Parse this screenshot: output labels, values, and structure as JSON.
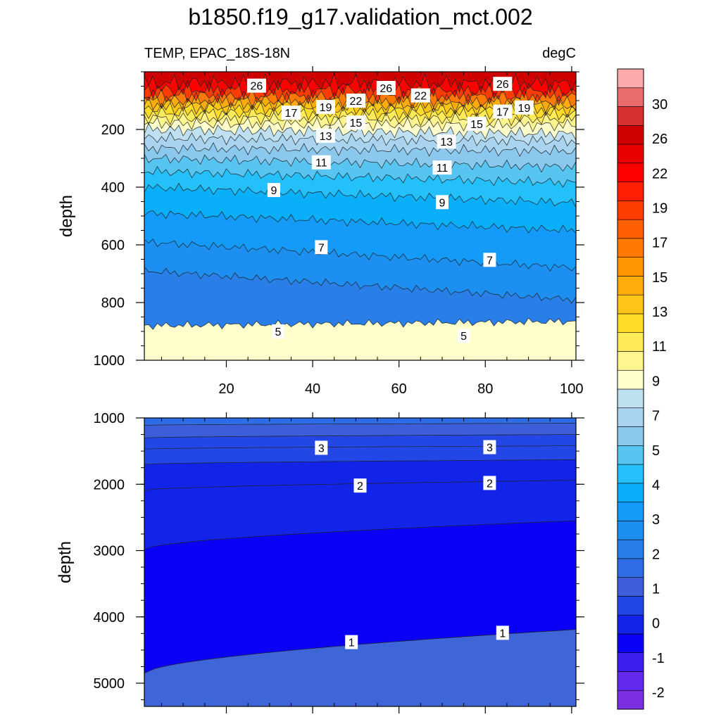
{
  "figure": {
    "title": "b1850.f19_g17.validation_mct.002"
  },
  "chart_data": [
    {
      "type": "contour",
      "panel": "upper",
      "left_label": "TEMP, EPAC_18S-18N",
      "right_label": "degC",
      "ylabel": "depth",
      "xlabel": "",
      "xlim": [
        1,
        101
      ],
      "ylim": [
        0,
        1000
      ],
      "y_reversed": true,
      "x_ticks": [
        20,
        40,
        60,
        80,
        100
      ],
      "y_ticks": [
        200,
        400,
        600,
        800,
        1000
      ],
      "contours": [
        {
          "level": 5,
          "depth_at_x1": 880,
          "depth_at_x101": 865
        },
        {
          "level": 6,
          "depth_at_x1": 690,
          "depth_at_x101": 790
        },
        {
          "level": 7,
          "depth_at_x1": 590,
          "depth_at_x101": 680
        },
        {
          "level": 8,
          "depth_at_x1": 490,
          "depth_at_x101": 550
        },
        {
          "level": 9,
          "depth_at_x1": 400,
          "depth_at_x101": 455
        },
        {
          "level": 10,
          "depth_at_x1": 345,
          "depth_at_x101": 385
        },
        {
          "level": 11,
          "depth_at_x1": 300,
          "depth_at_x101": 330
        },
        {
          "level": 12,
          "depth_at_x1": 265,
          "depth_at_x101": 275
        },
        {
          "level": 13,
          "depth_at_x1": 230,
          "depth_at_x101": 240
        },
        {
          "level": 14,
          "depth_at_x1": 200,
          "depth_at_x101": 215
        },
        {
          "level": 15,
          "depth_at_x1": 178,
          "depth_at_x101": 185
        },
        {
          "level": 16,
          "depth_at_x1": 160,
          "depth_at_x101": 165
        },
        {
          "level": 17,
          "depth_at_x1": 142,
          "depth_at_x101": 148
        },
        {
          "level": 18,
          "depth_at_x1": 126,
          "depth_at_x101": 132
        },
        {
          "level": 19,
          "depth_at_x1": 112,
          "depth_at_x101": 118
        },
        {
          "level": 20,
          "depth_at_x1": 98,
          "depth_at_x101": 104
        },
        {
          "level": 22,
          "depth_at_x1": 82,
          "depth_at_x101": 86
        },
        {
          "level": 24,
          "depth_at_x1": 62,
          "depth_at_x101": 66
        },
        {
          "level": 26,
          "depth_at_x1": 38,
          "depth_at_x101": 40
        }
      ],
      "contour_labels": [
        {
          "text": "26",
          "x": 27,
          "depth": 48
        },
        {
          "text": "26",
          "x": 57,
          "depth": 56
        },
        {
          "text": "22",
          "x": 65,
          "depth": 82
        },
        {
          "text": "26",
          "x": 84,
          "depth": 42
        },
        {
          "text": "17",
          "x": 35,
          "depth": 142
        },
        {
          "text": "19",
          "x": 43,
          "depth": 122
        },
        {
          "text": "22",
          "x": 50,
          "depth": 100
        },
        {
          "text": "17",
          "x": 84,
          "depth": 138
        },
        {
          "text": "19",
          "x": 89,
          "depth": 124
        },
        {
          "text": "15",
          "x": 50,
          "depth": 176
        },
        {
          "text": "13",
          "x": 43,
          "depth": 222
        },
        {
          "text": "15",
          "x": 78,
          "depth": 180
        },
        {
          "text": "13",
          "x": 71,
          "depth": 242
        },
        {
          "text": "11",
          "x": 42,
          "depth": 314
        },
        {
          "text": "11",
          "x": 70,
          "depth": 332
        },
        {
          "text": "9",
          "x": 31,
          "depth": 410
        },
        {
          "text": "9",
          "x": 70,
          "depth": 452
        },
        {
          "text": "7",
          "x": 42,
          "depth": 608
        },
        {
          "text": "7",
          "x": 81,
          "depth": 652
        },
        {
          "text": "5",
          "x": 32,
          "depth": 900
        },
        {
          "text": "5",
          "x": 75,
          "depth": 915
        }
      ]
    },
    {
      "type": "contour",
      "panel": "lower",
      "ylabel": "depth",
      "xlabel": "",
      "xlim": [
        1,
        101
      ],
      "ylim": [
        1000,
        5350
      ],
      "y_reversed": true,
      "x_ticks": [
        20,
        40,
        60,
        80,
        100
      ],
      "y_ticks": [
        1000,
        2000,
        3000,
        4000,
        5000
      ],
      "contours": [
        {
          "level": 1,
          "depth_at_x1": 4850,
          "depth_at_x101": 4190
        },
        {
          "level": 1.5,
          "depth_at_x1": 2980,
          "depth_at_x101": 2550
        },
        {
          "level": 2,
          "depth_at_x1": 2090,
          "depth_at_x101": 1940
        },
        {
          "level": 2.5,
          "depth_at_x1": 1700,
          "depth_at_x101": 1630
        },
        {
          "level": 3,
          "depth_at_x1": 1470,
          "depth_at_x101": 1420
        },
        {
          "level": 3.5,
          "depth_at_x1": 1300,
          "depth_at_x101": 1250
        },
        {
          "level": 4,
          "depth_at_x1": 1110,
          "depth_at_x101": 1080
        }
      ],
      "contour_labels": [
        {
          "text": "3",
          "x": 42,
          "depth": 1450
        },
        {
          "text": "3",
          "x": 81,
          "depth": 1440
        },
        {
          "text": "2",
          "x": 51,
          "depth": 2020
        },
        {
          "text": "2",
          "x": 81,
          "depth": 1980
        },
        {
          "text": "1",
          "x": 49,
          "depth": 4380
        },
        {
          "text": "1",
          "x": 84,
          "depth": 4240
        }
      ]
    }
  ],
  "colorbar": {
    "colors": [
      "#7b2ee2",
      "#6528ef",
      "#3c1fee",
      "#0a00f5",
      "#1224e8",
      "#2346e6",
      "#3c5ed9",
      "#2e6de6",
      "#2a7ee8",
      "#1c8ff0",
      "#149bfa",
      "#0aaffa",
      "#23c0fb",
      "#57c4f2",
      "#8ac8ee",
      "#a9d4ef",
      "#bfe0f1",
      "#ffffcc",
      "#fff58e",
      "#ffeb5a",
      "#ffdc2a",
      "#ffc418",
      "#ffab0b",
      "#ff9500",
      "#ff7a00",
      "#ff5f00",
      "#ff3c00",
      "#ff1e00",
      "#ff0000",
      "#e80000",
      "#d00000",
      "#d73131",
      "#e86c6c",
      "#ffaaaa"
    ],
    "labels": [
      "-2",
      "-1",
      "0",
      "1",
      "2",
      "3",
      "4",
      "5",
      "7",
      "9",
      "11",
      "13",
      "15",
      "17",
      "19",
      "22",
      "26",
      "30"
    ]
  }
}
